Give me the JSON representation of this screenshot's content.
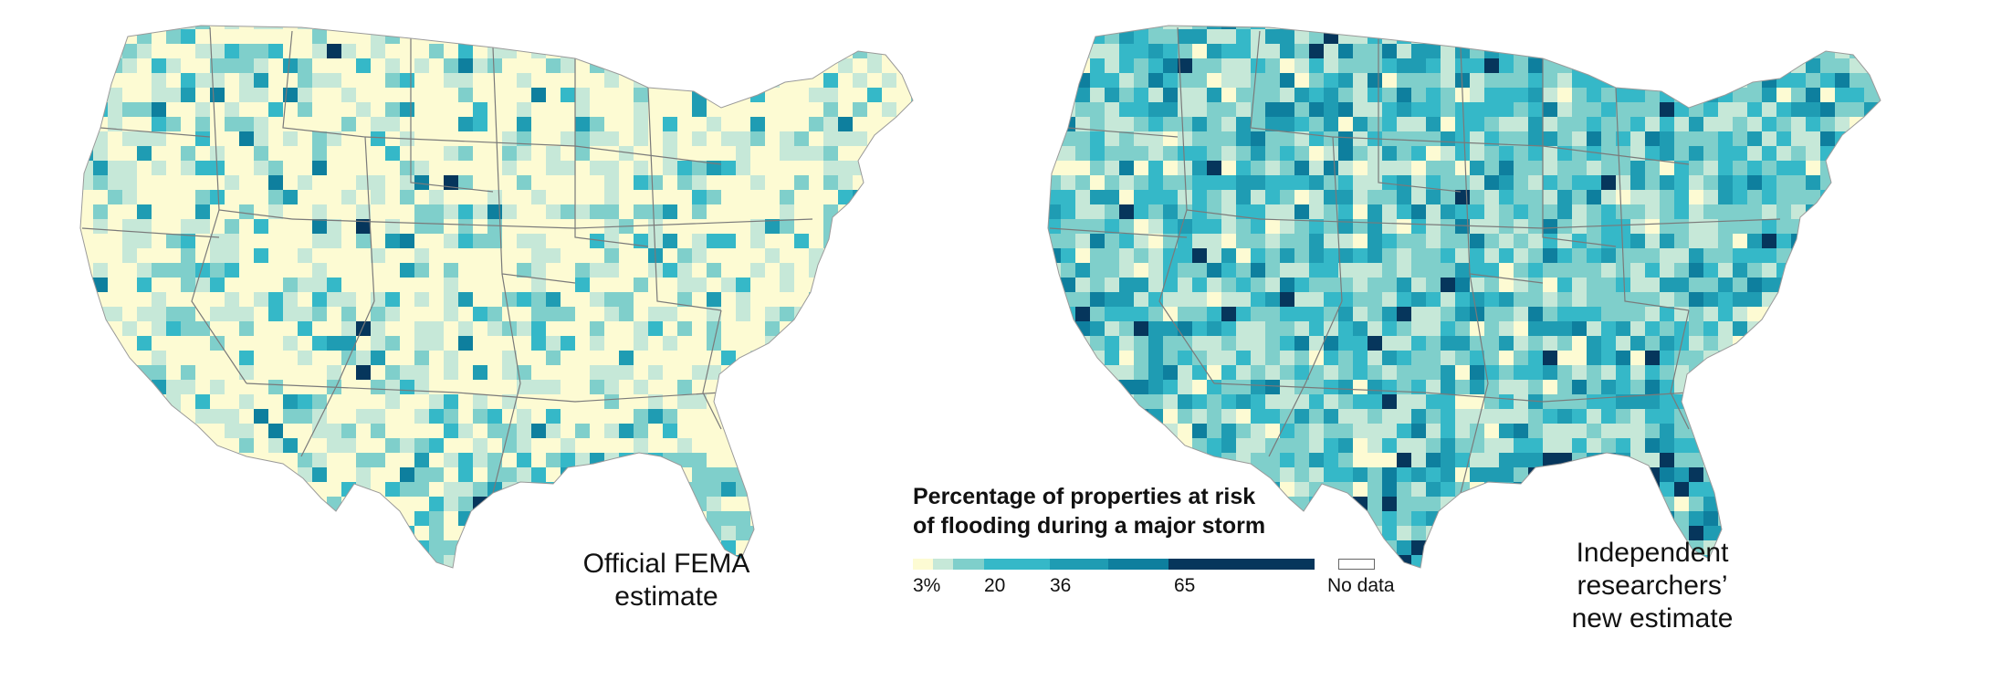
{
  "maps": [
    {
      "id": "left",
      "caption_lines": [
        "Official FEMA",
        "estimate"
      ],
      "base_color": "#fdfbd3",
      "county_mix": [
        0.55,
        0.22,
        0.12,
        0.06,
        0.03,
        0.015,
        0.005
      ]
    },
    {
      "id": "right",
      "caption_lines": [
        "Independent",
        "researchers’",
        "new estimate"
      ],
      "base_color": "#9bd4d2",
      "county_mix": [
        0.06,
        0.24,
        0.3,
        0.22,
        0.12,
        0.05,
        0.01
      ]
    }
  ],
  "legend": {
    "title_lines": [
      "Percentage of properties at risk",
      "of flooding during a major storm"
    ],
    "bins": [
      {
        "from": 0,
        "to": 3,
        "color": "#fdfbd3"
      },
      {
        "from": 3,
        "to": 8,
        "color": "#c6e8d8"
      },
      {
        "from": 8,
        "to": 20,
        "color": "#7fcfcb"
      },
      {
        "from": 20,
        "to": 36,
        "color": "#35b8c8"
      },
      {
        "from": 36,
        "to": 50,
        "color": "#1f9cb3"
      },
      {
        "from": 50,
        "to": 65,
        "color": "#0e7f9e"
      },
      {
        "from": 65,
        "to": 100,
        "color": "#06365c"
      }
    ],
    "tick_labels": [
      "3%",
      "20",
      "36",
      "65"
    ],
    "nodata_label": "No data",
    "nodata_color": "#ffffff"
  }
}
